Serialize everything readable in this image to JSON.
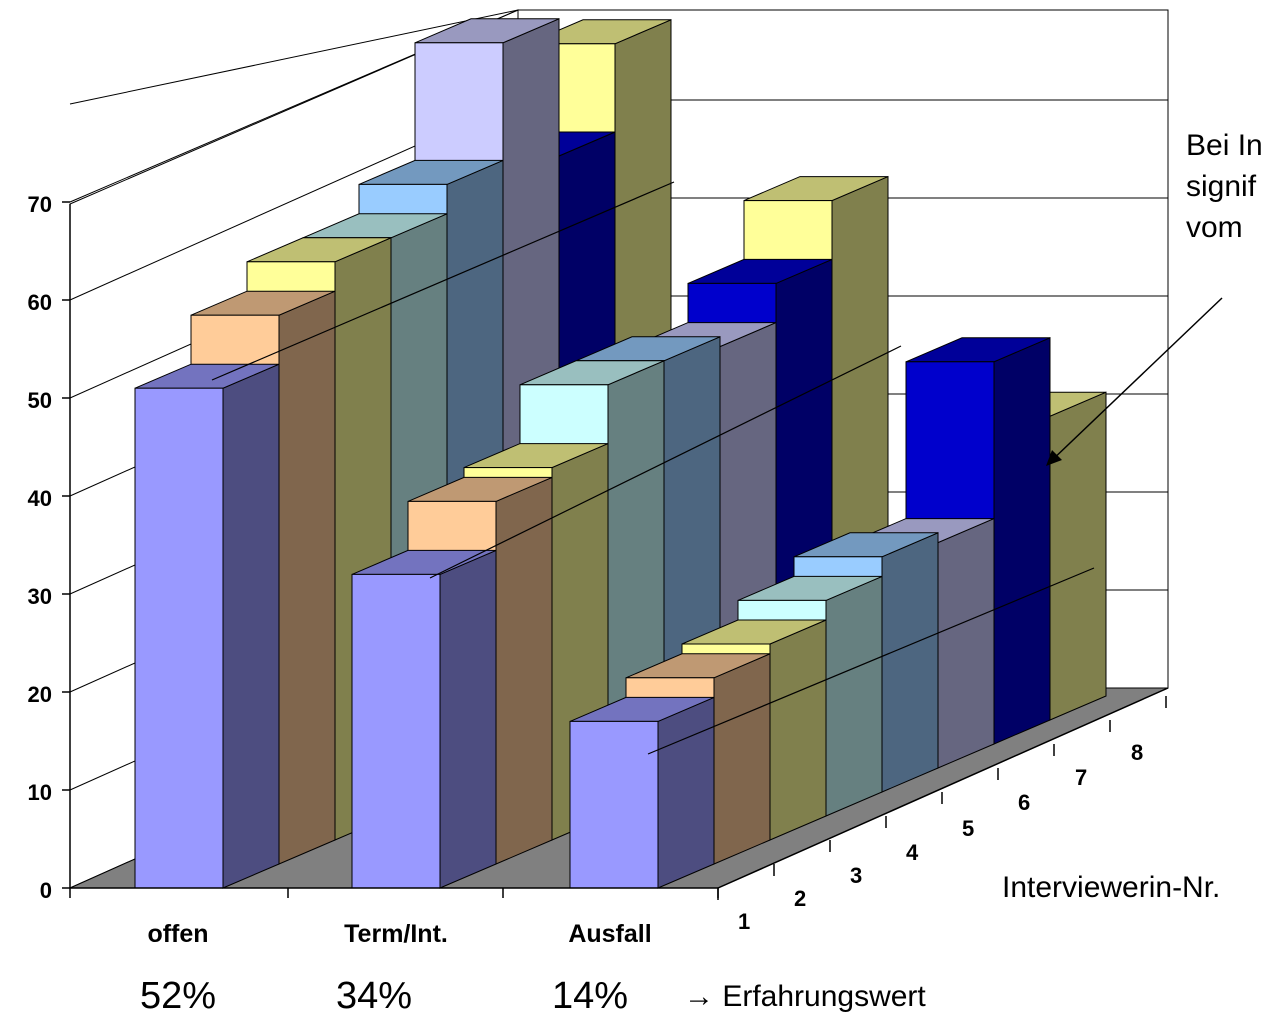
{
  "chart_data": {
    "type": "bar",
    "title": "",
    "ylim": [
      0,
      70
    ],
    "yticks": [
      "0",
      "10",
      "20",
      "30",
      "40",
      "50",
      "60",
      "70"
    ],
    "categories": [
      "offen",
      "Term/Int.",
      "Ausfall"
    ],
    "category_percent_labels": [
      "52%",
      "34%",
      "14%"
    ],
    "experience_label": "→ Erfahrungswert",
    "depth_axis_label": "Interviewerin-Nr.",
    "depth_ticks": [
      "1",
      "2",
      "3",
      "4",
      "5",
      "6",
      "7",
      "8"
    ],
    "annotation_lines": [
      "Bei In",
      "signif",
      "vom"
    ],
    "series": [
      {
        "name": "1",
        "color": "#9999ff",
        "values": [
          51,
          32,
          17
        ]
      },
      {
        "name": "2",
        "color": "#ffcc99",
        "values": [
          56,
          37,
          19
        ]
      },
      {
        "name": "3",
        "color": "#ffff99",
        "values": [
          59,
          38,
          20
        ]
      },
      {
        "name": "4",
        "color": "#ccffff",
        "values": [
          59,
          44,
          22
        ]
      },
      {
        "name": "5",
        "color": "#99ccff",
        "values": [
          62,
          44,
          24
        ]
      },
      {
        "name": "6",
        "color": "#ccccff",
        "values": [
          74,
          43,
          23
        ]
      },
      {
        "name": "7",
        "color": "#0000cc",
        "values": [
          60,
          47,
          39
        ]
      },
      {
        "name": "8",
        "color": "#ffff99",
        "values": [
          69,
          53,
          31
        ]
      }
    ]
  }
}
